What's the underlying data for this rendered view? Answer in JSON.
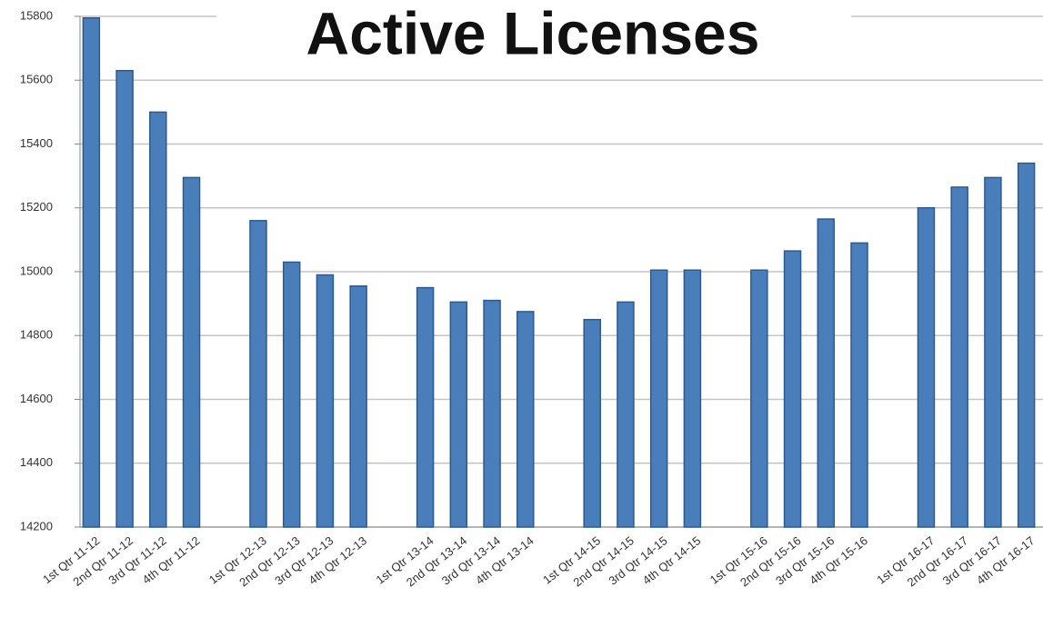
{
  "chart_data": {
    "type": "bar",
    "title": "Active Licenses",
    "categories": [
      "1st Qtr 11-12",
      "2nd Qtr 11-12",
      "3rd Qtr 11-12",
      "4th Qtr 11-12",
      null,
      "1st Qtr 12-13",
      "2nd Qtr 12-13",
      "3rd Qtr 12-13",
      "4th Qtr 12-13",
      null,
      "1st Qtr 13-14",
      "2nd Qtr 13-14",
      "3rd Qtr 13-14",
      "4th Qtr 13-14",
      null,
      "1st Qtr 14-15",
      "2nd Qtr 14-15",
      "3rd Qtr 14-15",
      "4th Qtr 14-15",
      null,
      "1st Qtr 15-16",
      "2nd Qtr 15-16",
      "3rd Qtr 15-16",
      "4th Qtr 15-16",
      null,
      "1st Qtr 16-17",
      "2nd Qtr 16-17",
      "3rd Qtr 16-17",
      "4th Qtr 16-17"
    ],
    "values": [
      15795,
      15630,
      15500,
      15295,
      null,
      15160,
      15030,
      14990,
      14955,
      null,
      14950,
      14905,
      14910,
      14875,
      null,
      14850,
      14905,
      15005,
      15005,
      null,
      15005,
      15065,
      15165,
      15090,
      null,
      15200,
      15265,
      15295,
      15340
    ],
    "color": "#4a7ebb",
    "ylim": [
      14200,
      15800
    ],
    "yticks": [
      14200,
      14400,
      14600,
      14800,
      15000,
      15200,
      15400,
      15600,
      15800
    ],
    "grid": true
  }
}
